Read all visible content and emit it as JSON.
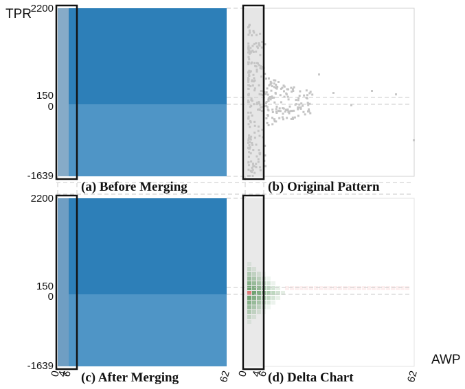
{
  "chart_data": {
    "type": "heatmap",
    "ylabel": "TPR",
    "xlabel": "AWP",
    "y_ticks": [
      "2200",
      "150",
      "0",
      "-1639"
    ],
    "y_values": [
      2200,
      150,
      0,
      -1639
    ],
    "ylim": [
      -1639,
      2200
    ],
    "x_ticks": [
      "0",
      "4",
      "6",
      "62"
    ],
    "x_values": [
      0,
      4,
      6,
      62
    ],
    "xlim": [
      0,
      62
    ],
    "highlight_x_range": [
      0,
      6
    ],
    "panels": [
      {
        "caption": "(a) Before Merging",
        "kind": "blocks",
        "cells": [
          {
            "x": [
              0,
              6
            ],
            "y": [
              0,
              2200
            ],
            "color": "#86abc8"
          },
          {
            "x": [
              6,
              62
            ],
            "y": [
              0,
              2200
            ],
            "color": "#2d7fb8"
          },
          {
            "x": [
              0,
              6
            ],
            "y": [
              -1639,
              0
            ],
            "color": "#86abc8"
          },
          {
            "x": [
              6,
              62
            ],
            "y": [
              -1639,
              0
            ],
            "color": "#4f95c6"
          }
        ]
      },
      {
        "caption": "(b) Original Pattern",
        "kind": "scatter"
      },
      {
        "caption": "(c) After Merging",
        "kind": "blocks",
        "cells": [
          {
            "x": [
              0,
              6
            ],
            "y": [
              -1639,
              2200
            ],
            "color": "#6f9ec3"
          },
          {
            "x": [
              6,
              62
            ],
            "y": [
              0,
              2200
            ],
            "color": "#2d7fb8"
          },
          {
            "x": [
              6,
              62
            ],
            "y": [
              -1639,
              0
            ],
            "color": "#4f95c6"
          }
        ]
      },
      {
        "caption": "(d) Delta Chart",
        "kind": "delta"
      }
    ]
  }
}
